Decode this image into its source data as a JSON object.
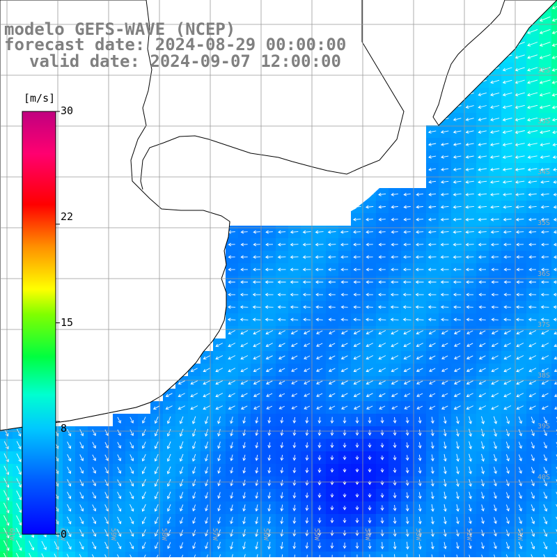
{
  "title": {
    "model": "modelo GEFS-WAVE (NCEP)",
    "forecast": "forecast date: 2024-08-29 00:00:00",
    "valid": "valid date: 2024-09-07 12:00:00"
  },
  "colorbar": {
    "unit": "[m/s]",
    "ticks": [
      "30",
      "22",
      "15",
      "8",
      "0"
    ],
    "tick_values": [
      30,
      22,
      15,
      8,
      0
    ],
    "min": 0,
    "max": 30,
    "colors": [
      "#0000ff",
      "#0080ff",
      "#00e0ff",
      "#00ff80",
      "#40ff00",
      "#ffff00",
      "#ff8000",
      "#ff0000",
      "#ff0080",
      "#c00080"
    ]
  },
  "map": {
    "land_color": "#ffffff",
    "coast_color": "#000000",
    "grid_color": "#999999",
    "arrow_color": "#ffffff",
    "lat_labels": [
      "32S",
      "33S",
      "34S",
      "35S",
      "36S",
      "37S",
      "38S",
      "39S",
      "40S"
    ],
    "lon_labels": [
      "61W",
      "60W",
      "59W",
      "58W",
      "57W",
      "56W",
      "55W",
      "54W",
      "53W",
      "52W",
      "51W"
    ]
  }
}
